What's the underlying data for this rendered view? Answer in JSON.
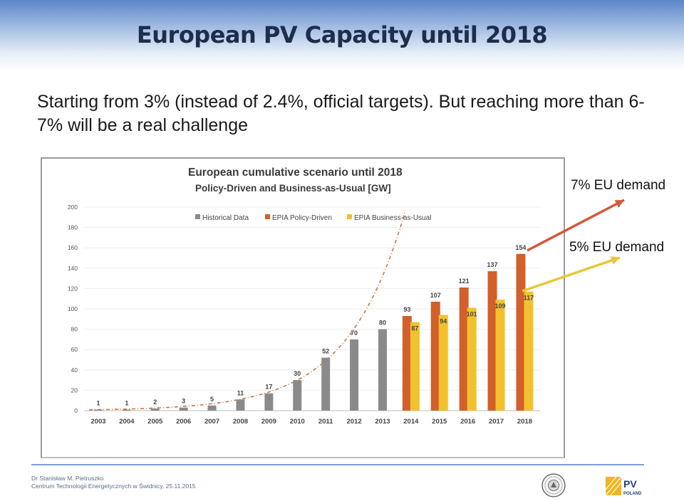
{
  "slide": {
    "title": "European PV Capacity until 2018",
    "subtitle": "Starting from 3% (instead of 2.4%, official targets). But reaching more than 6-7% will be a real challenge"
  },
  "annotations": {
    "demand_7": "7% EU demand",
    "demand_5": "5% EU demand"
  },
  "footer": {
    "author": "Dr Stanisław M. Pietruszko",
    "institution": "Centrum Technologii Energetycznych w Świdnicy, 25.11.2015",
    "logo_text": "PV",
    "logo_subtext": "POLAND"
  },
  "colors": {
    "historical": "#8a8a8a",
    "policy": "#d35f2a",
    "bau": "#f2c12e",
    "trend": "#c9774a",
    "arrow_red": "#d2593a",
    "arrow_yellow": "#e8c63a"
  },
  "chart_data": {
    "type": "bar",
    "title": "European cumulative scenario until 2018",
    "subtitle": "Policy-Driven and Business-as-Usual  [GW]",
    "categories": [
      "2003",
      "2004",
      "2005",
      "2006",
      "2007",
      "2008",
      "2009",
      "2010",
      "2011",
      "2012",
      "2013",
      "2014",
      "2015",
      "2016",
      "2017",
      "2018"
    ],
    "ylim": [
      0,
      200
    ],
    "yticks": [
      0,
      20,
      40,
      60,
      80,
      100,
      120,
      140,
      160,
      180,
      200
    ],
    "series": [
      {
        "name": "Historical Data",
        "values": [
          1,
          1,
          2,
          3,
          5,
          11,
          17,
          30,
          52,
          70,
          80,
          null,
          null,
          null,
          null,
          null
        ]
      },
      {
        "name": "EPIA Policy-Driven",
        "values": [
          null,
          null,
          null,
          null,
          null,
          null,
          null,
          null,
          null,
          null,
          null,
          93,
          107,
          121,
          137,
          154
        ]
      },
      {
        "name": "EPIA Business-as-Usual",
        "values": [
          null,
          null,
          null,
          null,
          null,
          null,
          null,
          null,
          null,
          null,
          null,
          87,
          94,
          101,
          109,
          117
        ]
      }
    ],
    "trendline": "exponential (dotted)"
  }
}
